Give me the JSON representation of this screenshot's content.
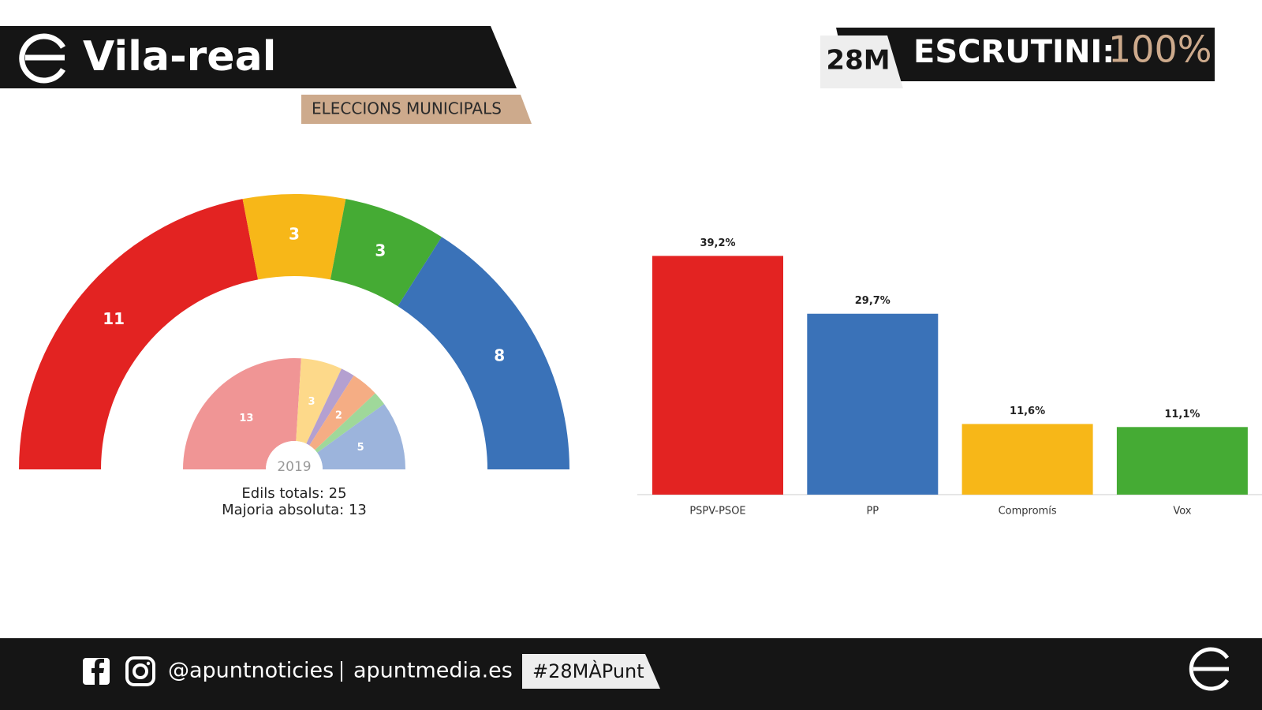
{
  "header": {
    "title": "Vila-real",
    "subtitle": "ELECCIONS MUNICIPALS",
    "badge": "28M",
    "scrutiny_label": "ESCRUTINI:",
    "scrutiny_value": "100%"
  },
  "chart_data": [
    {
      "type": "parliament",
      "values": [
        11,
        3,
        3,
        8
      ],
      "colors": [
        "#e32322",
        "#f7b718",
        "#45ab34",
        "#3a72b8"
      ],
      "label_color": "#ffffff"
    },
    {
      "type": "parliament",
      "title": "2019",
      "values": [
        13,
        3,
        1,
        2,
        1,
        5
      ],
      "value_labels": [
        "13",
        "3",
        null,
        "2",
        null,
        "5"
      ],
      "colors": [
        "#f09595",
        "#fdd98a",
        "#b4a0d0",
        "#f5ad84",
        "#9fd89a",
        "#9cb4dc"
      ],
      "label_color": "#ffffff",
      "notes": [
        "Edils totals: 25",
        "Majoria absoluta: 13"
      ]
    },
    {
      "type": "bar",
      "categories": [
        "PSPV-PSOE",
        "PP",
        "Compromís",
        "Vox"
      ],
      "values": [
        39.2,
        29.7,
        11.6,
        11.1
      ],
      "value_labels": [
        "39,2%",
        "29,7%",
        "11,6%",
        "11,1%"
      ],
      "colors": [
        "#e32322",
        "#3a72b8",
        "#f7b718",
        "#45ab34"
      ]
    }
  ],
  "footer": {
    "handle": "@apuntnoticies",
    "website": "apuntmedia.es",
    "hashtag": "#28MÀPunt"
  }
}
